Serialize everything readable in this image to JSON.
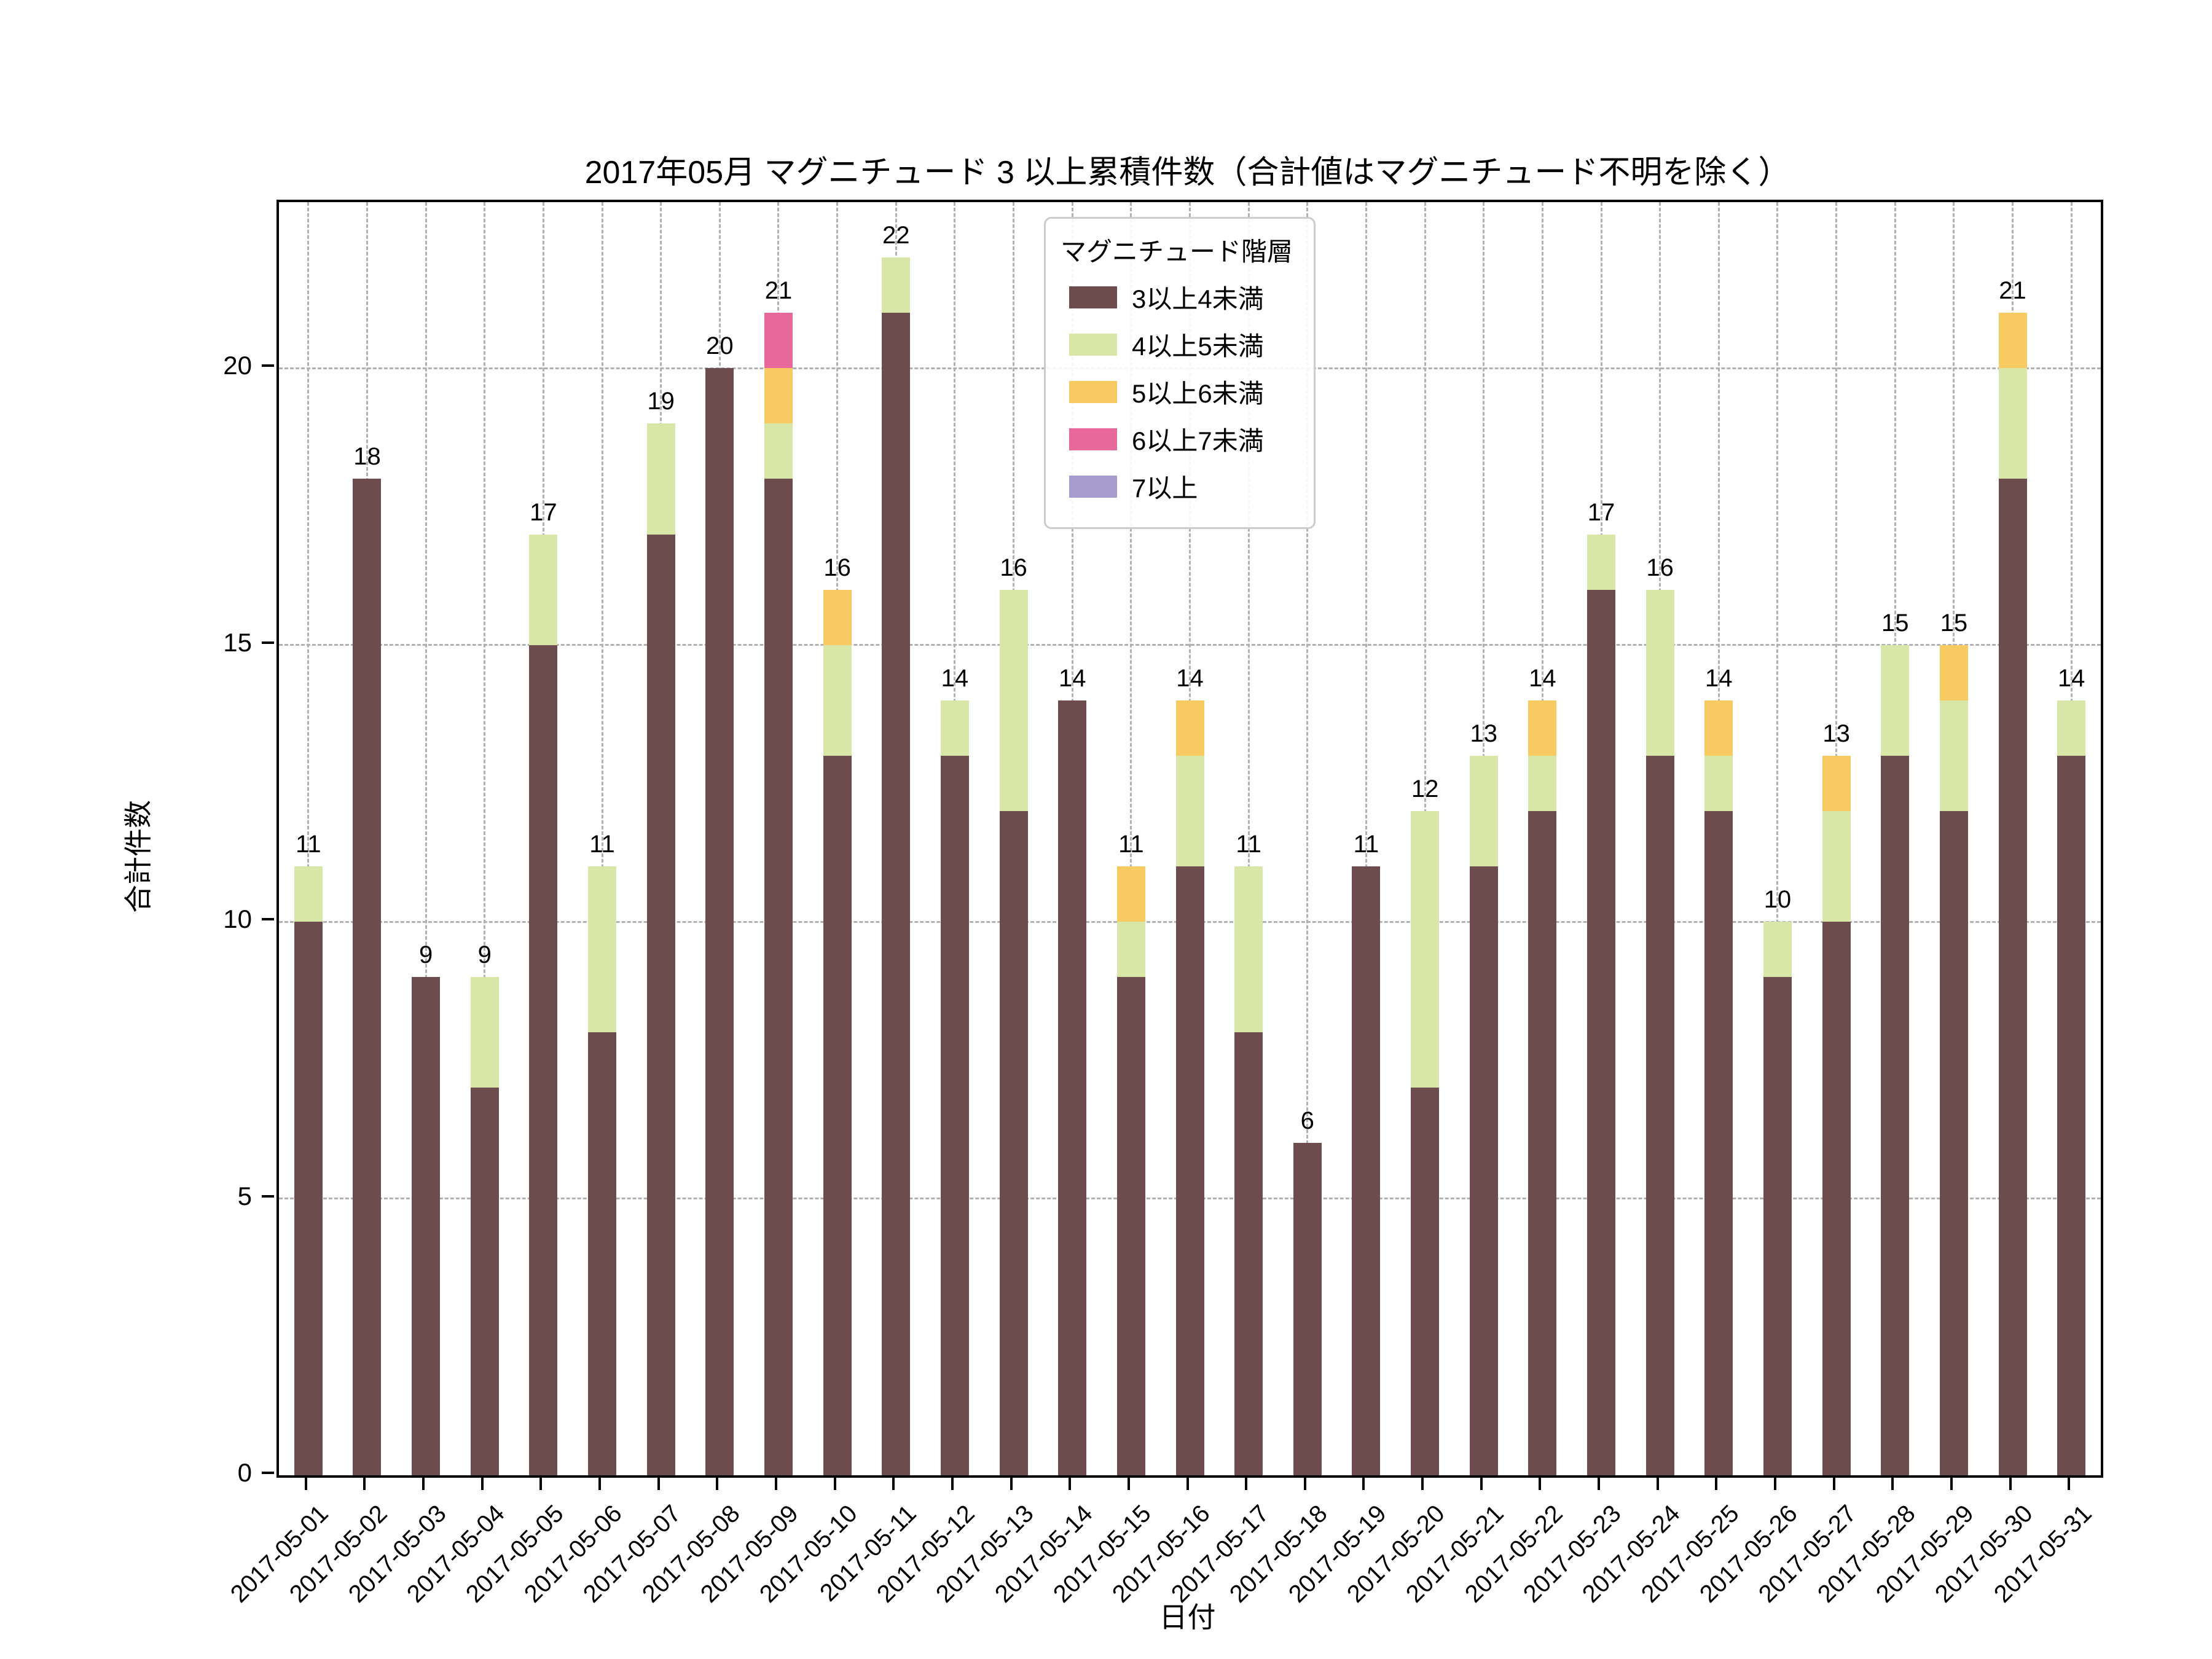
{
  "chart_data": {
    "type": "bar",
    "stacked": true,
    "title": "2017年05月 マグニチュード 3 以上累積件数（合計値はマグニチュード不明を除く）",
    "xlabel": "日付",
    "ylabel": "合計件数",
    "ylim": [
      0,
      23
    ],
    "yticks": [
      0,
      5,
      10,
      15,
      20
    ],
    "grid": "dashed, both axes",
    "legend_title": "マグニチュード階層",
    "legend_position": "upper center inside plot",
    "categories": [
      "2017-05-01",
      "2017-05-02",
      "2017-05-03",
      "2017-05-04",
      "2017-05-05",
      "2017-05-06",
      "2017-05-07",
      "2017-05-08",
      "2017-05-09",
      "2017-05-10",
      "2017-05-11",
      "2017-05-12",
      "2017-05-13",
      "2017-05-14",
      "2017-05-15",
      "2017-05-16",
      "2017-05-17",
      "2017-05-18",
      "2017-05-19",
      "2017-05-20",
      "2017-05-21",
      "2017-05-22",
      "2017-05-23",
      "2017-05-24",
      "2017-05-25",
      "2017-05-26",
      "2017-05-27",
      "2017-05-28",
      "2017-05-29",
      "2017-05-30",
      "2017-05-31"
    ],
    "series": [
      {
        "name": "3以上4未満",
        "color": "#6d4c4e",
        "values": [
          10,
          18,
          9,
          7,
          15,
          8,
          17,
          20,
          18,
          13,
          21,
          13,
          12,
          14,
          9,
          11,
          8,
          6,
          11,
          7,
          11,
          12,
          16,
          13,
          12,
          9,
          10,
          13,
          12,
          18,
          13
        ]
      },
      {
        "name": "4以上5未満",
        "color": "#d8e7a8",
        "values": [
          1,
          0,
          0,
          2,
          2,
          3,
          2,
          0,
          1,
          2,
          1,
          1,
          4,
          0,
          1,
          2,
          3,
          0,
          0,
          5,
          2,
          1,
          1,
          3,
          1,
          1,
          2,
          2,
          2,
          2,
          1
        ]
      },
      {
        "name": "5以上6未満",
        "color": "#f8ca62",
        "values": [
          0,
          0,
          0,
          0,
          0,
          0,
          0,
          0,
          1,
          1,
          0,
          0,
          0,
          0,
          1,
          1,
          0,
          0,
          0,
          0,
          0,
          1,
          0,
          0,
          1,
          0,
          1,
          0,
          1,
          1,
          0
        ]
      },
      {
        "name": "6以上7未満",
        "color": "#e8689b",
        "values": [
          0,
          0,
          0,
          0,
          0,
          0,
          0,
          0,
          1,
          0,
          0,
          0,
          0,
          0,
          0,
          0,
          0,
          0,
          0,
          0,
          0,
          0,
          0,
          0,
          0,
          0,
          0,
          0,
          0,
          0,
          0
        ]
      },
      {
        "name": "7以上",
        "color": "#a89ccd",
        "values": [
          0,
          0,
          0,
          0,
          0,
          0,
          0,
          0,
          0,
          0,
          0,
          0,
          0,
          0,
          0,
          0,
          0,
          0,
          0,
          0,
          0,
          0,
          0,
          0,
          0,
          0,
          0,
          0,
          0,
          0,
          0
        ]
      }
    ],
    "totals": [
      11,
      18,
      9,
      9,
      17,
      11,
      19,
      20,
      21,
      16,
      22,
      14,
      16,
      14,
      11,
      14,
      11,
      6,
      11,
      12,
      13,
      14,
      17,
      16,
      14,
      10,
      13,
      15,
      15,
      21,
      14
    ],
    "colors": {
      "grid": "#b1b1b1",
      "spine": "#000000",
      "text": "#000000",
      "background": "#ffffff"
    }
  }
}
